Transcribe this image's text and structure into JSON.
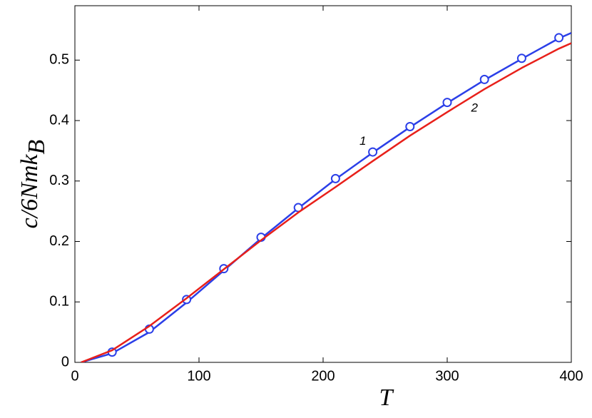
{
  "chart_data": {
    "type": "line",
    "xlabel": "T",
    "ylabel": "c/6Nmk",
    "ylabel_sub": "B",
    "xlim": [
      0,
      400
    ],
    "xticks": [
      0,
      100,
      200,
      300,
      400
    ],
    "ylim": [
      0,
      0.59
    ],
    "yticks": [
      0,
      0.1,
      0.2,
      0.3,
      0.4,
      0.5
    ],
    "series": [
      {
        "color": "#2b3fe8",
        "marker": false,
        "x": [
          5,
          30,
          60,
          90,
          120,
          150,
          180,
          210,
          240,
          270,
          300,
          330,
          360,
          390,
          400
        ],
        "values": [
          0,
          0.015,
          0.05,
          0.099,
          0.152,
          0.205,
          0.255,
          0.303,
          0.347,
          0.389,
          0.429,
          0.467,
          0.502,
          0.536,
          0.545
        ]
      },
      {
        "color": "#2b3fe8",
        "marker": true,
        "x": [
          30,
          60,
          90,
          120,
          150,
          180,
          210,
          240,
          270,
          300,
          330,
          360,
          390
        ],
        "values": [
          0.017,
          0.055,
          0.104,
          0.155,
          0.207,
          0.256,
          0.304,
          0.348,
          0.39,
          0.43,
          0.468,
          0.503,
          0.537
        ]
      },
      {
        "color": "#e8201a",
        "marker": false,
        "x": [
          5,
          30,
          60,
          90,
          120,
          150,
          180,
          210,
          240,
          270,
          300,
          330,
          360,
          390,
          400
        ],
        "values": [
          0,
          0.02,
          0.06,
          0.106,
          0.154,
          0.202,
          0.248,
          0.29,
          0.333,
          0.375,
          0.414,
          0.452,
          0.487,
          0.519,
          0.528
        ]
      }
    ],
    "annotations": [
      {
        "text": "1",
        "x": 232,
        "y": 0.365
      },
      {
        "text": "2",
        "x": 322,
        "y": 0.42
      }
    ]
  }
}
